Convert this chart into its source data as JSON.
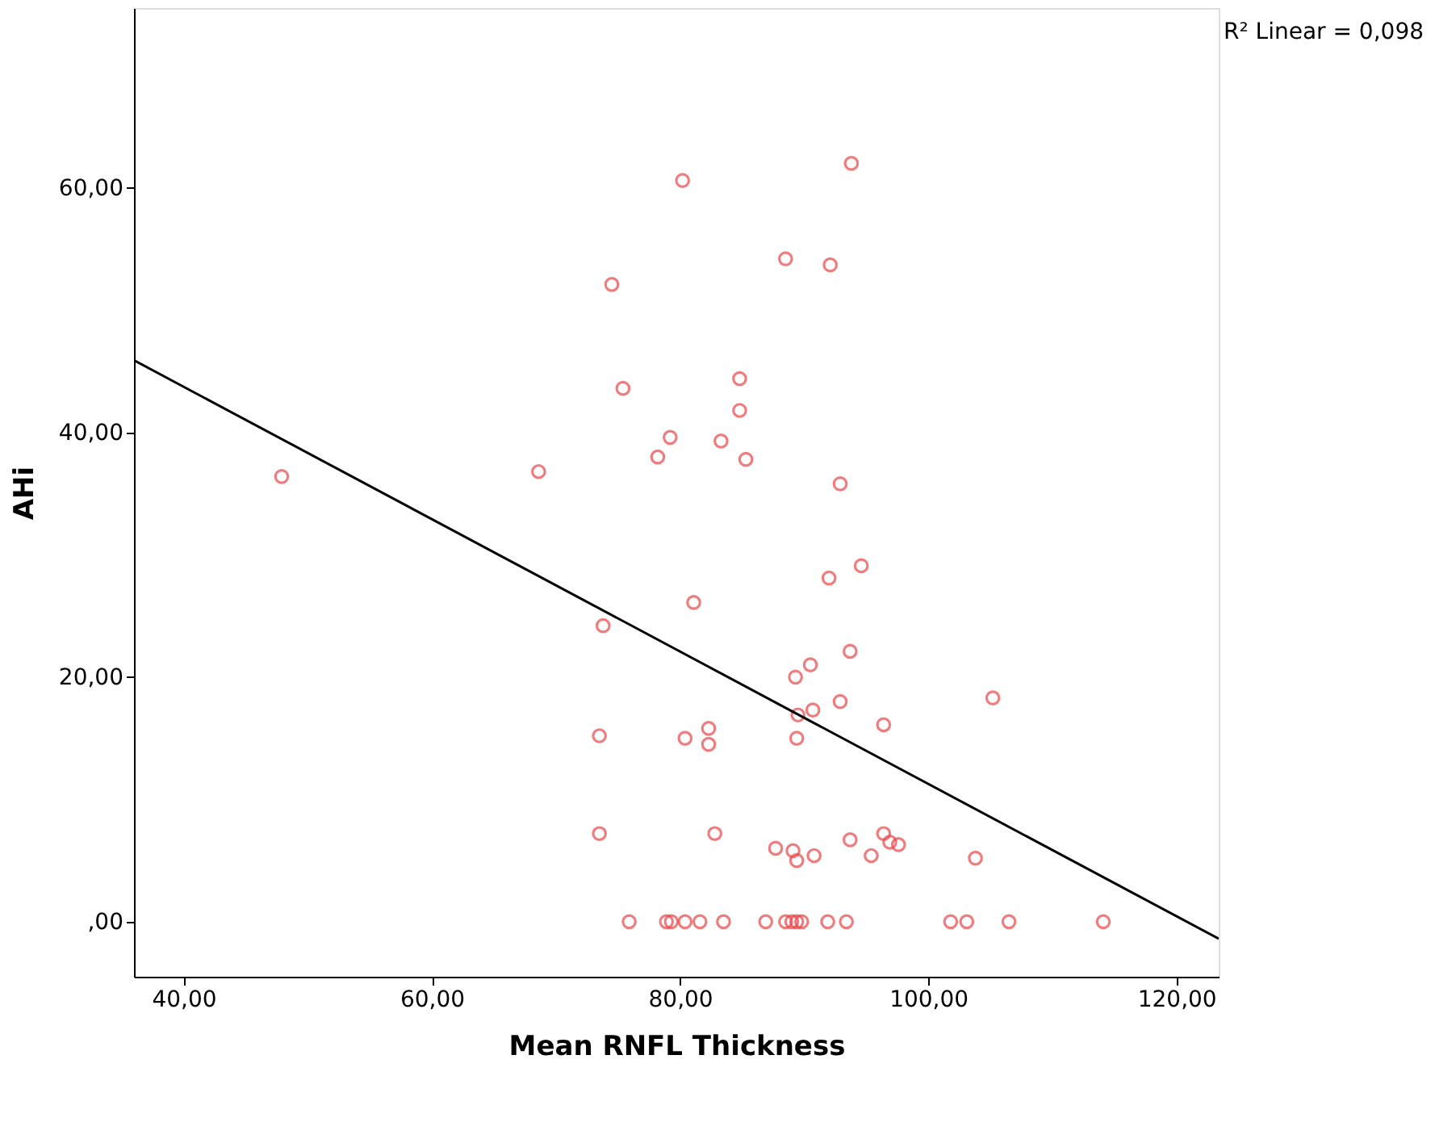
{
  "chart_data": {
    "type": "scatter",
    "xlabel": "Mean RNFL Thickness",
    "ylabel": "AHi",
    "annotations": [
      "R² Linear = 0,098"
    ],
    "xlim": [
      36.0,
      123.4
    ],
    "ylim": [
      -4.5,
      74.7
    ],
    "xticks": [
      {
        "value": 40,
        "label": "40,00"
      },
      {
        "value": 60,
        "label": "60,00"
      },
      {
        "value": 80,
        "label": "80,00"
      },
      {
        "value": 100,
        "label": "100,00"
      },
      {
        "value": 120,
        "label": "120,00"
      }
    ],
    "yticks": [
      {
        "value": 0,
        "label": ",00"
      },
      {
        "value": 20,
        "label": "20,00"
      },
      {
        "value": 40,
        "label": "40,00"
      },
      {
        "value": 60,
        "label": "60,00"
      }
    ],
    "grid": false,
    "series": [
      {
        "color": "#e8474a",
        "marker": "circle",
        "x": [
          47.9,
          68.6,
          74.5,
          75.4,
          78.2,
          79.2,
          80.2,
          83.3,
          84.8,
          84.8,
          85.3,
          88.5,
          92.1,
          93.8,
          92.9,
          73.8,
          81.1,
          92.0,
          94.6,
          93.7,
          90.5,
          89.3,
          90.7,
          89.5,
          92.9,
          96.4,
          105.2,
          73.5,
          80.4,
          82.3,
          82.3,
          89.4,
          73.5,
          82.8,
          87.7,
          89.1,
          89.4,
          90.8,
          93.7,
          95.4,
          96.4,
          96.9,
          97.6,
          103.8,
          75.9,
          78.9,
          79.3,
          80.4,
          81.6,
          83.5,
          86.9,
          88.5,
          89.0,
          89.4,
          89.8,
          91.9,
          93.4,
          101.8,
          103.1,
          106.5,
          114.1
        ],
        "values": [
          36.4,
          36.8,
          52.1,
          43.6,
          38.0,
          39.6,
          60.6,
          39.3,
          41.8,
          44.4,
          37.8,
          54.2,
          53.7,
          62.0,
          35.8,
          24.2,
          26.1,
          28.1,
          29.1,
          22.1,
          21.0,
          20.0,
          17.3,
          16.9,
          18.0,
          16.1,
          18.3,
          15.2,
          15.0,
          15.8,
          14.5,
          15.0,
          7.2,
          7.2,
          6.0,
          5.8,
          5.0,
          5.4,
          6.7,
          5.4,
          7.2,
          6.5,
          6.3,
          5.2,
          0,
          0,
          0,
          0,
          0,
          0,
          0,
          0,
          0,
          0,
          0,
          0,
          0,
          0,
          0,
          0,
          0
        ]
      },
      {
        "type": "line",
        "color": "#000000",
        "line_style": "solid",
        "x": [
          36.0,
          123.4
        ],
        "values": [
          45.9,
          -1.4
        ]
      }
    ]
  }
}
